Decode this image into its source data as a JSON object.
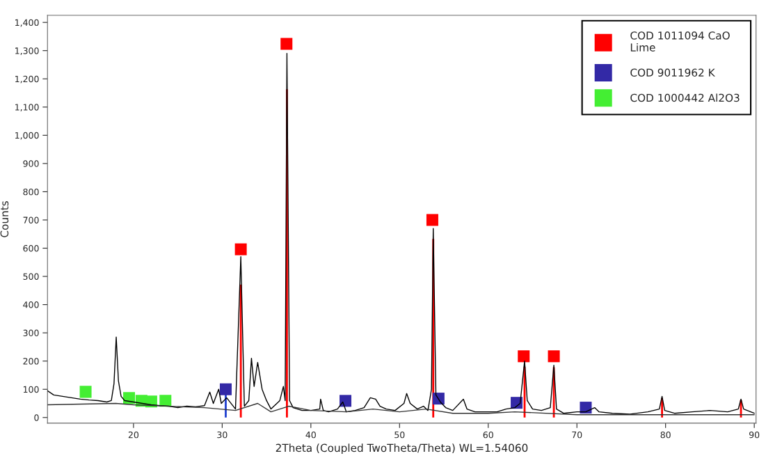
{
  "chart_data": {
    "type": "line",
    "xlabel": "2Theta (Coupled TwoTheta/Theta) WL=1.54060",
    "ylabel": "Counts",
    "xlim": [
      10.3,
      90.2
    ],
    "ylim": [
      -20,
      1425
    ],
    "xticks": [
      20,
      30,
      40,
      50,
      60,
      70,
      80,
      90
    ],
    "yticks": [
      0,
      {
        "value": 100,
        "label": "100"
      },
      {
        "value": 200,
        "label": "200"
      },
      {
        "value": 300,
        "label": "300"
      },
      {
        "value": 400,
        "label": "400"
      },
      {
        "value": 500,
        "label": "500"
      },
      {
        "value": 600,
        "label": "600"
      },
      {
        "value": 700,
        "label": "700"
      },
      {
        "value": 800,
        "label": "800"
      },
      {
        "value": 900,
        "label": "900"
      },
      {
        "value": 1000,
        "label": "1,000"
      },
      {
        "value": 1100,
        "label": "1,100"
      },
      {
        "value": 1200,
        "label": "1,200"
      },
      {
        "value": 1300,
        "label": "1,300"
      },
      {
        "value": 1400,
        "label": "1,400"
      }
    ],
    "grid": false,
    "legend": "top right",
    "series": [
      {
        "color": "#000000",
        "x": [
          10.3,
          11,
          12,
          13,
          14,
          15,
          16,
          17,
          17.5,
          17.8,
          18.05,
          18.3,
          18.6,
          19,
          20,
          21,
          22,
          23,
          24,
          25,
          26,
          27,
          28,
          28.6,
          29,
          29.6,
          29.9,
          30.5,
          31.5,
          32.1,
          32.5,
          33.0,
          33.3,
          33.6,
          34.0,
          34.5,
          35.0,
          35.5,
          36.5,
          36.9,
          37.1,
          37.3,
          37.6,
          38,
          39,
          40,
          41,
          41.1,
          41.4,
          42,
          43,
          43.6,
          44,
          45,
          46,
          46.7,
          47.3,
          47.8,
          48.5,
          49.5,
          50.5,
          50.8,
          51.2,
          52,
          52.7,
          53.2,
          53.6,
          53.8,
          54.1,
          54.6,
          55.2,
          56,
          57.2,
          57.6,
          58.5,
          60,
          61,
          62,
          63,
          63.6,
          64.1,
          64.4,
          65,
          66,
          67,
          67.4,
          67.7,
          68.5,
          70,
          71,
          72,
          72.5,
          74,
          76,
          78,
          79.3,
          79.6,
          79.9,
          81,
          83,
          85,
          87,
          88.2,
          88.5,
          88.8,
          90
        ],
        "values": [
          95,
          80,
          75,
          70,
          65,
          62,
          60,
          55,
          60,
          120,
          285,
          130,
          75,
          60,
          55,
          50,
          45,
          42,
          40,
          35,
          40,
          38,
          42,
          90,
          50,
          100,
          50,
          70,
          30,
          570,
          40,
          60,
          210,
          110,
          195,
          100,
          60,
          30,
          60,
          110,
          60,
          1290,
          60,
          35,
          25,
          25,
          30,
          65,
          25,
          20,
          30,
          55,
          20,
          25,
          35,
          70,
          65,
          40,
          30,
          25,
          50,
          85,
          50,
          30,
          40,
          25,
          100,
          670,
          80,
          55,
          35,
          25,
          65,
          30,
          20,
          20,
          20,
          30,
          35,
          50,
          200,
          60,
          30,
          25,
          35,
          185,
          30,
          15,
          20,
          20,
          35,
          20,
          15,
          12,
          20,
          30,
          75,
          25,
          15,
          20,
          25,
          20,
          30,
          65,
          30,
          15
        ]
      },
      {
        "color": "#333333",
        "x": [
          10.3,
          18,
          20,
          28,
          31.5,
          34,
          35.5,
          37.5,
          40,
          44,
          47,
          50,
          53,
          56,
          60,
          63,
          70,
          90
        ],
        "values": [
          45,
          50,
          45,
          35,
          25,
          50,
          20,
          40,
          25,
          20,
          30,
          20,
          30,
          15,
          15,
          20,
          10,
          10
        ]
      },
      {
        "type": "bar",
        "color": "#ff0000",
        "x": [
          32.1,
          37.3,
          53.8,
          64.1,
          67.4,
          79.6,
          88.5
        ],
        "values": [
          471,
          1163,
          633,
          180,
          178,
          69,
          62
        ]
      },
      {
        "type": "bar",
        "color": "#1f3fd0",
        "x": [
          30.4
        ],
        "values": [
          90
        ]
      },
      {
        "type": "scatter",
        "marker": "square",
        "name": "COD 1011094 CaO\nLime",
        "color": "#ff0000",
        "x": [
          32.1,
          37.25,
          53.7,
          64.0,
          67.4
        ],
        "values": [
          596,
          1324,
          700,
          217,
          217
        ]
      },
      {
        "type": "scatter",
        "marker": "square",
        "name": "COD 9011962 K",
        "color": "#3329a6",
        "x": [
          30.4,
          43.9,
          54.4,
          63.2,
          71.0
        ],
        "values": [
          100,
          59,
          67,
          52,
          35
        ]
      },
      {
        "type": "scatter",
        "marker": "square",
        "name": "COD 1000442 Al2O3",
        "color": "#44ee33",
        "x": [
          14.6,
          19.5,
          20.9,
          22.0,
          23.6
        ],
        "values": [
          91,
          69,
          59,
          57,
          59
        ]
      }
    ]
  }
}
